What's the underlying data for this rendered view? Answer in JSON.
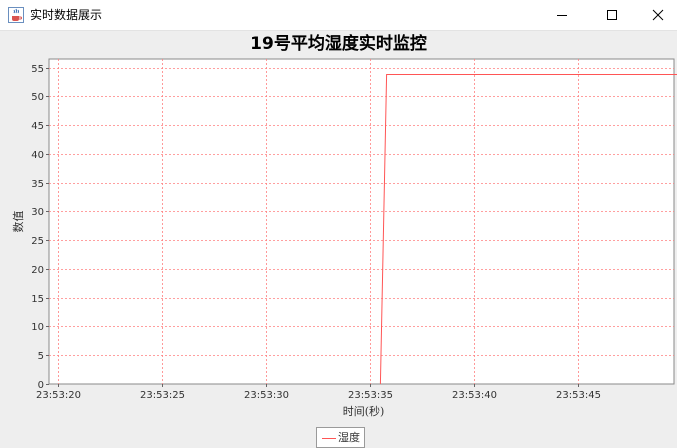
{
  "window": {
    "title": "实时数据展示",
    "app_icon": "java-cup-icon",
    "controls": [
      "minimize-icon",
      "maximize-icon",
      "close-icon"
    ]
  },
  "chart_data": {
    "type": "line",
    "title": "19号平均湿度实时监控",
    "xlabel": "时间(秒)",
    "ylabel": "数值",
    "x_ticks": [
      "23:53:20",
      "23:53:25",
      "23:53:30",
      "23:53:35",
      "23:53:40",
      "23:53:45"
    ],
    "y_ticks": [
      0,
      5,
      10,
      15,
      20,
      25,
      30,
      35,
      40,
      45,
      50,
      55
    ],
    "xlim": [
      "23:53:20",
      "23:53:49.8"
    ],
    "ylim": [
      0,
      56.5
    ],
    "grid": true,
    "legend_position": "bottom",
    "series": [
      {
        "name": "湿度",
        "color": "#ff5555",
        "points": [
          {
            "x": "23:53:35.5",
            "y": 0
          },
          {
            "x": "23:53:35.8",
            "y": 53.8
          },
          {
            "x": "23:53:49.8",
            "y": 53.8
          }
        ]
      }
    ]
  }
}
